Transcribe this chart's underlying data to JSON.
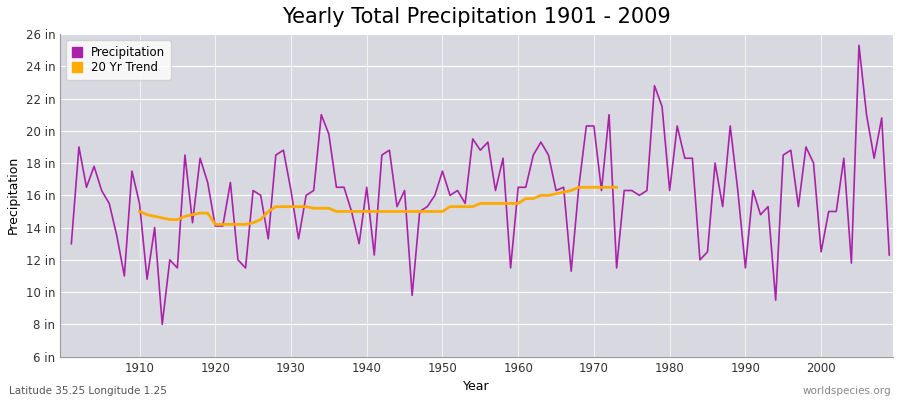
{
  "title": "Yearly Total Precipitation 1901 - 2009",
  "xlabel": "Year",
  "ylabel": "Precipitation",
  "subtitle": "Latitude 35.25 Longitude 1.25",
  "watermark": "worldspecies.org",
  "years": [
    1901,
    1902,
    1903,
    1904,
    1905,
    1906,
    1907,
    1908,
    1909,
    1910,
    1911,
    1912,
    1913,
    1914,
    1915,
    1916,
    1917,
    1918,
    1919,
    1920,
    1921,
    1922,
    1923,
    1924,
    1925,
    1926,
    1927,
    1928,
    1929,
    1930,
    1931,
    1932,
    1933,
    1934,
    1935,
    1936,
    1937,
    1938,
    1939,
    1940,
    1941,
    1942,
    1943,
    1944,
    1945,
    1946,
    1947,
    1948,
    1949,
    1950,
    1951,
    1952,
    1953,
    1954,
    1955,
    1956,
    1957,
    1958,
    1959,
    1960,
    1961,
    1962,
    1963,
    1964,
    1965,
    1966,
    1967,
    1968,
    1969,
    1970,
    1971,
    1972,
    1973,
    1974,
    1975,
    1976,
    1977,
    1978,
    1979,
    1980,
    1981,
    1982,
    1983,
    1984,
    1985,
    1986,
    1987,
    1988,
    1989,
    1990,
    1991,
    1992,
    1993,
    1994,
    1995,
    1996,
    1997,
    1998,
    1999,
    2000,
    2001,
    2002,
    2003,
    2004,
    2005,
    2006,
    2007,
    2008,
    2009
  ],
  "precip": [
    13.0,
    19.0,
    16.5,
    17.8,
    16.3,
    15.5,
    13.5,
    11.0,
    17.5,
    15.5,
    10.8,
    14.0,
    8.0,
    12.0,
    11.5,
    18.5,
    14.3,
    18.3,
    16.8,
    14.1,
    14.1,
    16.8,
    12.0,
    11.5,
    16.3,
    16.0,
    13.3,
    18.5,
    18.8,
    16.3,
    13.3,
    16.0,
    16.3,
    21.0,
    19.8,
    16.5,
    16.5,
    15.0,
    13.0,
    16.5,
    12.3,
    18.5,
    18.8,
    15.3,
    16.3,
    9.8,
    15.0,
    15.3,
    16.0,
    17.5,
    16.0,
    16.3,
    15.5,
    19.5,
    18.8,
    19.3,
    16.3,
    18.3,
    11.5,
    16.5,
    16.5,
    18.5,
    19.3,
    18.5,
    16.3,
    16.5,
    11.3,
    16.5,
    20.3,
    20.3,
    16.3,
    21.0,
    11.5,
    16.3,
    16.3,
    16.0,
    16.3,
    22.8,
    21.5,
    16.3,
    20.3,
    18.3,
    18.3,
    12.0,
    12.5,
    18.0,
    15.3,
    20.3,
    16.3,
    11.5,
    16.3,
    14.8,
    15.3,
    9.5,
    18.5,
    18.8,
    15.3,
    19.0,
    18.0,
    12.5,
    15.0,
    15.0,
    18.3,
    11.8,
    25.3,
    21.0,
    18.3,
    20.8,
    12.3
  ],
  "trend_years": [
    1910,
    1911,
    1912,
    1913,
    1914,
    1915,
    1916,
    1917,
    1918,
    1919,
    1920,
    1921,
    1922,
    1923,
    1924,
    1925,
    1926,
    1927,
    1928,
    1929,
    1930,
    1931,
    1932,
    1933,
    1934,
    1935,
    1936,
    1937,
    1938,
    1939,
    1940,
    1941,
    1942,
    1943,
    1944,
    1945,
    1946,
    1947,
    1948,
    1949,
    1950,
    1951,
    1952,
    1953,
    1954,
    1955,
    1956,
    1957,
    1958,
    1959,
    1960,
    1961,
    1962,
    1963,
    1964,
    1965,
    1966,
    1967,
    1968,
    1969,
    1970,
    1971,
    1972,
    1973
  ],
  "trend_values": [
    15.0,
    14.8,
    14.7,
    14.6,
    14.5,
    14.5,
    14.7,
    14.8,
    14.9,
    14.9,
    14.2,
    14.2,
    14.2,
    14.2,
    14.2,
    14.3,
    14.5,
    15.0,
    15.3,
    15.3,
    15.3,
    15.3,
    15.3,
    15.2,
    15.2,
    15.2,
    15.0,
    15.0,
    15.0,
    15.0,
    15.0,
    15.0,
    15.0,
    15.0,
    15.0,
    15.0,
    15.0,
    15.0,
    15.0,
    15.0,
    15.0,
    15.3,
    15.3,
    15.3,
    15.3,
    15.5,
    15.5,
    15.5,
    15.5,
    15.5,
    15.5,
    15.8,
    15.8,
    16.0,
    16.0,
    16.1,
    16.2,
    16.3,
    16.5,
    16.5,
    16.5,
    16.5,
    16.5,
    16.5
  ],
  "precip_color": "#aa22aa",
  "trend_color": "#ffaa00",
  "fig_bg_color": "#ffffff",
  "plot_bg_color": "#d8d8e0",
  "grid_color": "#ffffff",
  "ylim": [
    6,
    26
  ],
  "yticks": [
    6,
    8,
    10,
    12,
    14,
    16,
    18,
    20,
    22,
    24,
    26
  ],
  "ytick_labels": [
    "6 in",
    "8 in",
    "10 in",
    "12 in",
    "14 in",
    "16 in",
    "18 in",
    "20 in",
    "22 in",
    "24 in",
    "26 in"
  ],
  "xlim": [
    1899.5,
    2009.5
  ],
  "xticks": [
    1910,
    1920,
    1930,
    1940,
    1950,
    1960,
    1970,
    1980,
    1990,
    2000
  ],
  "title_fontsize": 15,
  "axis_label_fontsize": 9,
  "tick_fontsize": 8.5,
  "legend_fontsize": 8.5
}
